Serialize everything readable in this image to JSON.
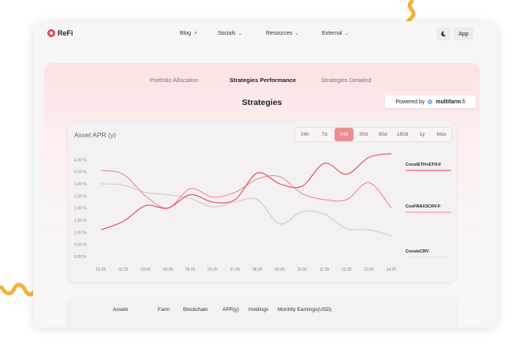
{
  "brand": {
    "name": "ReFi",
    "accent": "#e9445a"
  },
  "nav": [
    {
      "label": "Blog",
      "icon": "external-arrow-icon"
    },
    {
      "label": "Socials",
      "icon": "chevron-down-icon"
    },
    {
      "label": "Resources",
      "icon": "chevron-down-icon"
    },
    {
      "label": "External",
      "icon": "chevron-down-icon"
    }
  ],
  "header": {
    "theme_icon": "moon-icon",
    "app_label": "App"
  },
  "tabs": [
    {
      "label": "Portfolio Allocation",
      "active": false
    },
    {
      "label": "Strategies Performance",
      "active": true
    },
    {
      "label": "Strategies Detailed",
      "active": false
    }
  ],
  "section_title": "Strategies",
  "powered": {
    "prefix": "Powered by",
    "brand": "multifarm",
    "suffix": ".fi"
  },
  "chart": {
    "title": "Asset APR (y)",
    "ranges": [
      "24h",
      "7d",
      "14d",
      "30d",
      "90d",
      "180d",
      "1y",
      "Max"
    ],
    "active_range": "14d"
  },
  "chart_data": {
    "type": "line",
    "title": "Asset APR (y)",
    "x": [
      "01.05",
      "02.05",
      "03.05",
      "04.05",
      "05.05",
      "06.05",
      "07.05",
      "08.05",
      "09.05",
      "10.05",
      "11.05",
      "12.05",
      "13.05",
      "14.05"
    ],
    "y_ticks": [
      "0.00 %",
      "0.50 %",
      "1.00 %",
      "1.50 %",
      "2.00 %",
      "2.50 %",
      "3.00 %",
      "3.50 %",
      "4.00 %"
    ],
    "ylim": [
      0,
      4.5
    ],
    "grid": false,
    "legend_position": "right",
    "series": [
      {
        "name": "CvxstETH+ETH-F",
        "color": "#e8445a",
        "values": [
          1.1,
          1.45,
          2.1,
          2.0,
          2.55,
          2.25,
          2.35,
          3.45,
          3.0,
          2.9,
          3.85,
          3.4,
          4.1,
          4.25
        ]
      },
      {
        "name": "CvxFRAX3CRV-F",
        "color": "#f08a92",
        "values": [
          3.55,
          3.4,
          2.5,
          2.0,
          2.8,
          2.45,
          2.65,
          3.2,
          3.3,
          2.6,
          2.35,
          2.35,
          3.05,
          2.0
        ]
      },
      {
        "name": "CvxsteCRV",
        "color": "#d4d0d0",
        "values": [
          3.0,
          2.95,
          2.65,
          2.55,
          2.4,
          2.05,
          2.25,
          2.35,
          1.35,
          1.85,
          1.75,
          1.15,
          1.1,
          0.85
        ]
      }
    ]
  },
  "table": {
    "headers": [
      "Assets",
      "Farm",
      "Blockchain",
      "APR(y)",
      "Holdings",
      "Monthly Earnings(USD)"
    ]
  }
}
